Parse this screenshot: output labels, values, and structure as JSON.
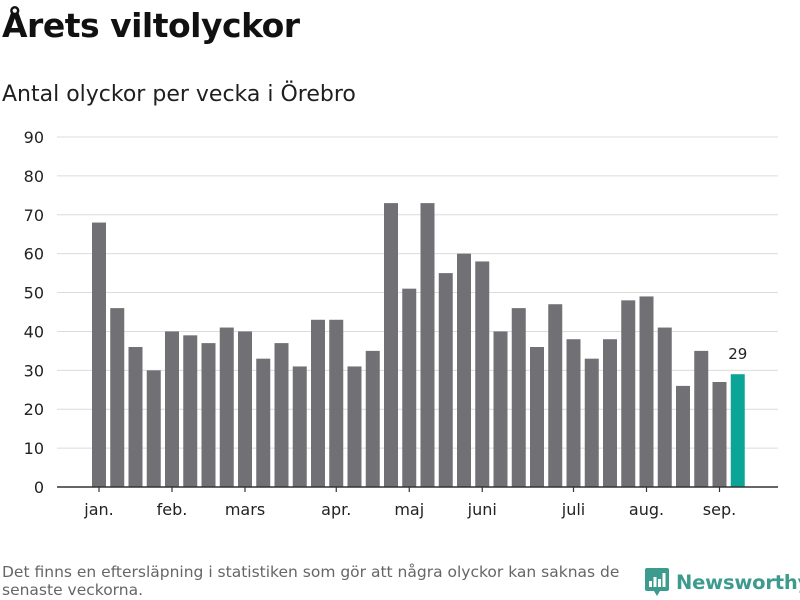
{
  "header": {
    "title": "Årets viltolyckor",
    "subtitle": "Antal olyckor per vecka i Örebro"
  },
  "footer": {
    "note": "Det finns en eftersläpning i statistiken som gör att några olyckor kan saknas de senaste veckorna.",
    "brand": "Newsworthy"
  },
  "colors": {
    "bar": "#717074",
    "highlight": "#0aa596",
    "grid": "#dcdcdc",
    "axis": "#333333",
    "brand": "#3d9b8e"
  },
  "chart_data": {
    "type": "bar",
    "title": "Årets viltolyckor",
    "subtitle": "Antal olyckor per vecka i Örebro",
    "ylim": [
      0,
      90
    ],
    "yticks": [
      0,
      10,
      20,
      30,
      40,
      50,
      60,
      70,
      80,
      90
    ],
    "grid": true,
    "month_labels": [
      {
        "label": "jan.",
        "week": 1
      },
      {
        "label": "feb.",
        "week": 5
      },
      {
        "label": "mars",
        "week": 9
      },
      {
        "label": "apr.",
        "week": 14
      },
      {
        "label": "maj",
        "week": 18
      },
      {
        "label": "juni",
        "week": 22
      },
      {
        "label": "juli",
        "week": 27
      },
      {
        "label": "aug.",
        "week": 31
      },
      {
        "label": "sep.",
        "week": 35
      }
    ],
    "weeks": [
      1,
      2,
      3,
      4,
      5,
      6,
      7,
      8,
      9,
      10,
      11,
      12,
      13,
      14,
      15,
      16,
      17,
      18,
      19,
      20,
      21,
      22,
      23,
      24,
      25,
      26,
      27,
      28,
      29,
      30,
      31,
      32,
      33,
      34,
      35,
      36
    ],
    "values": [
      68,
      46,
      36,
      30,
      40,
      39,
      37,
      41,
      40,
      33,
      37,
      31,
      43,
      43,
      31,
      35,
      73,
      51,
      73,
      55,
      60,
      58,
      40,
      46,
      36,
      47,
      38,
      33,
      38,
      48,
      49,
      41,
      26,
      35,
      27,
      29
    ],
    "highlight_index": 35,
    "highlight_label": "29"
  }
}
